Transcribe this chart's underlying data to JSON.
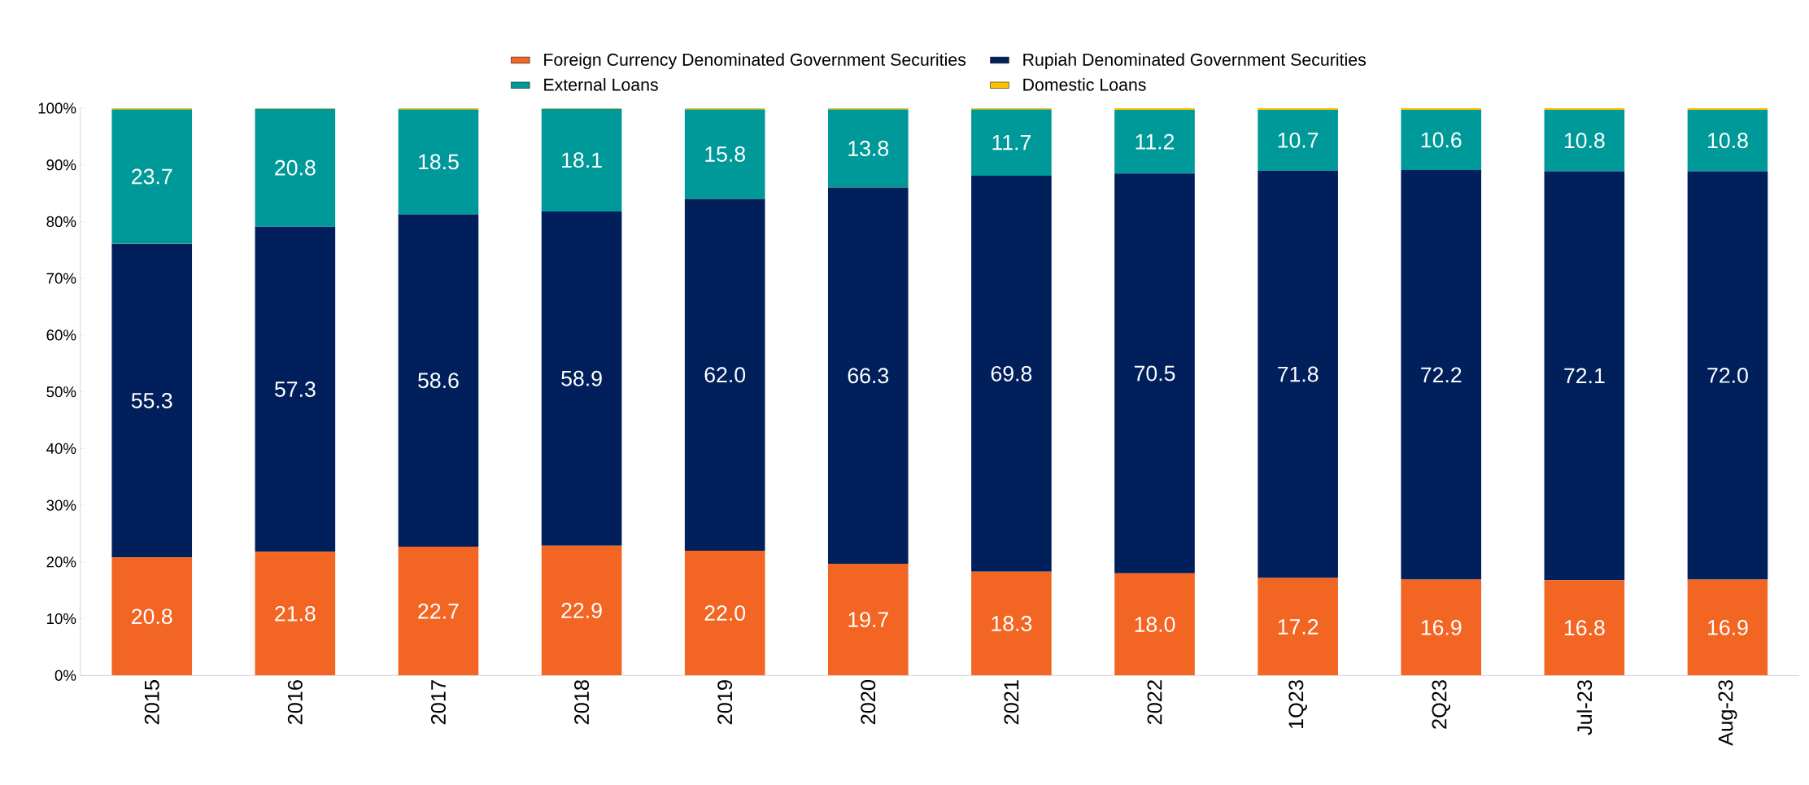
{
  "chart_data": {
    "type": "bar",
    "stacked": true,
    "legend": "top",
    "categories": [
      "2015",
      "2016",
      "2017",
      "2018",
      "2019",
      "2020",
      "2021",
      "2022",
      "1Q23",
      "2Q23",
      "Jul-23",
      "Aug-23"
    ],
    "ylim": [
      0,
      100
    ],
    "yticks": [
      {
        "value": 0,
        "label": "0%"
      },
      {
        "value": 10,
        "label": "10%"
      },
      {
        "value": 20,
        "label": "20%"
      },
      {
        "value": 30,
        "label": "30%"
      },
      {
        "value": 40,
        "label": "40%"
      },
      {
        "value": 50,
        "label": "50%"
      },
      {
        "value": 60,
        "label": "60%"
      },
      {
        "value": 70,
        "label": "70%"
      },
      {
        "value": 80,
        "label": "80%"
      },
      {
        "value": 90,
        "label": "90%"
      },
      {
        "value": 100,
        "label": "100%"
      }
    ],
    "series": [
      {
        "name": "Foreign Currency Denominated Government Securities",
        "color": "#f26522",
        "values": [
          20.8,
          21.8,
          22.7,
          22.9,
          22.0,
          19.7,
          18.3,
          18.0,
          17.2,
          16.9,
          16.8,
          16.9
        ],
        "value_labels": [
          "20.8",
          "21.8",
          "22.7",
          "22.9",
          "22.0",
          "19.7",
          "18.3",
          "18.0",
          "17.2",
          "16.9",
          "16.8",
          "16.9"
        ]
      },
      {
        "name": "Rupiah Denominated Government Securities",
        "color": "#001f5b",
        "values": [
          55.3,
          57.3,
          58.6,
          58.9,
          62.0,
          66.3,
          69.8,
          70.5,
          71.8,
          72.2,
          72.1,
          72.0
        ],
        "value_labels": [
          "55.3",
          "57.3",
          "58.6",
          "58.9",
          "62.0",
          "66.3",
          "69.8",
          "70.5",
          "71.8",
          "72.2",
          "72.1",
          "72.0"
        ]
      },
      {
        "name": "External Loans",
        "color": "#009999",
        "values": [
          23.7,
          20.8,
          18.5,
          18.1,
          15.8,
          13.8,
          11.7,
          11.2,
          10.7,
          10.6,
          10.8,
          10.8
        ],
        "value_labels": [
          "23.7",
          "20.8",
          "18.5",
          "18.1",
          "15.8",
          "13.8",
          "11.7",
          "11.2",
          "10.7",
          "10.6",
          "10.8",
          "10.8"
        ]
      },
      {
        "name": "Domestic Loans",
        "color": "#ffc000",
        "values": [
          0.2,
          0.1,
          0.2,
          0.1,
          0.2,
          0.2,
          0.2,
          0.3,
          0.3,
          0.3,
          0.3,
          0.3
        ]
      }
    ]
  }
}
